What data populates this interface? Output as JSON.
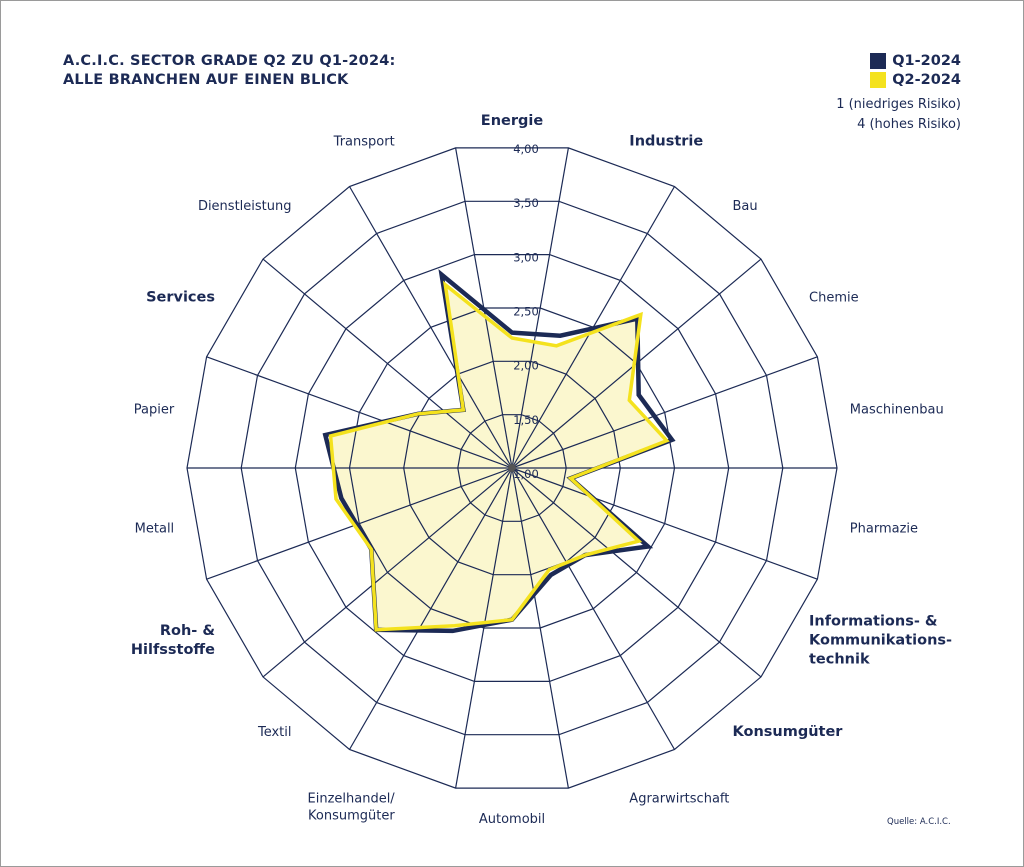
{
  "chart_data": {
    "type": "radar",
    "title": "A.C.I.C. SECTOR GRADE Q2 ZU Q1-2024:",
    "subtitle": "ALLE BRANCHEN AUF EINEN BLICK",
    "categories": [
      {
        "label": [
          "Energie"
        ],
        "bold": true
      },
      {
        "label": [
          "Industrie"
        ],
        "bold": true
      },
      {
        "label": [
          "Bau"
        ],
        "bold": false
      },
      {
        "label": [
          "Chemie"
        ],
        "bold": false
      },
      {
        "label": [
          "Maschinenbau"
        ],
        "bold": false
      },
      {
        "label": [
          "Pharmazie"
        ],
        "bold": false
      },
      {
        "label": [
          "Informations- &",
          "Kommunikations-",
          "technik"
        ],
        "bold": true
      },
      {
        "label": [
          "Konsumgüter"
        ],
        "bold": true
      },
      {
        "label": [
          "Agrarwirtschaft"
        ],
        "bold": false
      },
      {
        "label": [
          "Automobil"
        ],
        "bold": false
      },
      {
        "label": [
          "Einzelhandel/",
          "Konsumgüter"
        ],
        "bold": false
      },
      {
        "label": [
          "Textil"
        ],
        "bold": false
      },
      {
        "label": [
          "Roh- &",
          "Hilfsstoffe"
        ],
        "bold": true
      },
      {
        "label": [
          "Metall"
        ],
        "bold": false
      },
      {
        "label": [
          "Papier"
        ],
        "bold": false
      },
      {
        "label": [
          "Services"
        ],
        "bold": true
      },
      {
        "label": [
          "Dienstleistung"
        ],
        "bold": false
      },
      {
        "label": [
          "Transport"
        ],
        "bold": false
      }
    ],
    "series": [
      {
        "name": "Q1-2024",
        "color": "#1c2a55",
        "values": [
          2.25,
          2.3,
          2.8,
          2.35,
          2.5,
          1.55,
          2.45,
          2.05,
          2.05,
          2.4,
          2.6,
          2.95,
          2.5,
          2.6,
          2.75,
          2.0,
          1.7,
          2.9
        ]
      },
      {
        "name": "Q2-2024",
        "color": "#f4e21e",
        "values": [
          2.2,
          2.2,
          2.85,
          2.25,
          2.45,
          1.55,
          2.35,
          2.05,
          2.0,
          2.4,
          2.55,
          2.95,
          2.5,
          2.65,
          2.7,
          2.0,
          1.7,
          2.8
        ]
      }
    ],
    "ticks": [
      "4,00",
      "3,50",
      "3,00",
      "2,50",
      "2,00",
      "1,50",
      "1,00"
    ],
    "range": [
      1,
      4
    ],
    "scale_note_low": "1 (niedriges Risiko)",
    "scale_note_high": "4 (hohes Risiko)",
    "legend_position": "top-right",
    "source": "Quelle: A.C.I.C."
  },
  "colors": {
    "navy": "#1c2a55",
    "yellow": "#f4e21e",
    "fill": "#fbf7cf"
  }
}
